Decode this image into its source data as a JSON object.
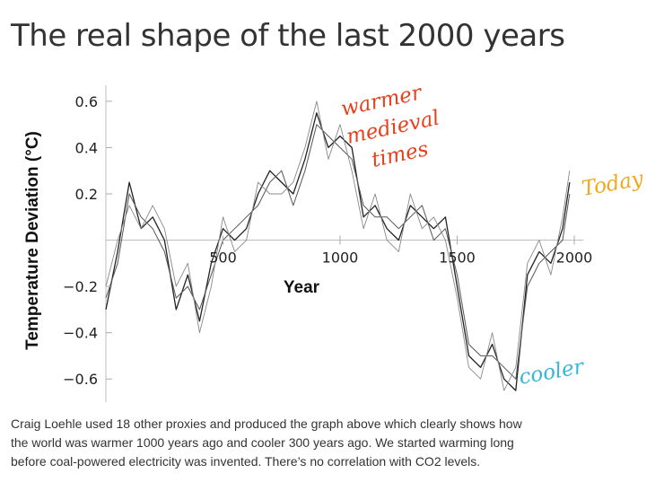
{
  "slide": {
    "title": "The real shape of the last 2000 years",
    "caption_lines": [
      "Craig  Loehle used 18 other proxies and produced the graph above which clearly shows how",
      "the world was warmer 1000 years ago and cooler 300 years ago. We started warming long",
      "before coal-powered electricity was invented. There’s no correlation with CO2 levels."
    ]
  },
  "chart_data": {
    "type": "line",
    "xlabel": "Year",
    "ylabel": "Temperature Deviation (°C)",
    "xlim": [
      0,
      2000
    ],
    "ylim": [
      -0.7,
      0.65
    ],
    "x_ticks": [
      "500",
      "1000",
      "1500",
      "2000"
    ],
    "y_ticks": [
      "0.6",
      "0.4",
      "0.2",
      "−0.2",
      "−0.4",
      "−0.6"
    ],
    "y_tick_values": [
      0.6,
      0.4,
      0.2,
      -0.2,
      -0.4,
      -0.6
    ],
    "x_tick_values": [
      500,
      1000,
      1500,
      2000
    ],
    "x": [
      0,
      50,
      100,
      150,
      200,
      250,
      300,
      350,
      400,
      450,
      500,
      550,
      600,
      650,
      700,
      750,
      800,
      850,
      900,
      950,
      1000,
      1050,
      1100,
      1150,
      1200,
      1250,
      1300,
      1350,
      1400,
      1450,
      1500,
      1550,
      1600,
      1650,
      1700,
      1750,
      1800,
      1850,
      1900,
      1950,
      1980
    ],
    "series": [
      {
        "values": [
          -0.3,
          -0.05,
          0.25,
          0.05,
          0.1,
          0.0,
          -0.3,
          -0.15,
          -0.35,
          -0.1,
          0.05,
          0.0,
          0.05,
          0.2,
          0.3,
          0.25,
          0.2,
          0.35,
          0.55,
          0.4,
          0.45,
          0.4,
          0.1,
          0.15,
          0.05,
          0.0,
          0.15,
          0.1,
          0.05,
          0.1,
          -0.2,
          -0.5,
          -0.55,
          -0.45,
          -0.6,
          -0.65,
          -0.15,
          -0.05,
          -0.1,
          0.05,
          0.25
        ]
      },
      {
        "values": [
          -0.25,
          -0.1,
          0.2,
          0.1,
          0.05,
          -0.05,
          -0.25,
          -0.2,
          -0.3,
          -0.15,
          0.0,
          0.05,
          0.1,
          0.15,
          0.25,
          0.3,
          0.15,
          0.3,
          0.5,
          0.45,
          0.4,
          0.35,
          0.15,
          0.1,
          0.1,
          0.05,
          0.1,
          0.15,
          0.0,
          0.05,
          -0.15,
          -0.45,
          -0.5,
          -0.5,
          -0.55,
          -0.6,
          -0.2,
          -0.1,
          -0.05,
          0.0,
          0.2
        ]
      },
      {
        "values": [
          -0.2,
          0.0,
          0.15,
          0.05,
          0.15,
          0.05,
          -0.2,
          -0.1,
          -0.4,
          -0.2,
          0.1,
          -0.05,
          0.0,
          0.25,
          0.2,
          0.2,
          0.25,
          0.4,
          0.6,
          0.35,
          0.5,
          0.3,
          0.05,
          0.2,
          0.0,
          -0.05,
          0.2,
          0.05,
          0.1,
          0.0,
          -0.25,
          -0.55,
          -0.6,
          -0.4,
          -0.65,
          -0.55,
          -0.1,
          0.0,
          -0.15,
          0.1,
          0.3
        ]
      }
    ],
    "annotations": [
      {
        "lines": [
          "warmer",
          "medieval",
          "times"
        ],
        "color": "#e8401c"
      },
      {
        "lines": [
          "Today"
        ],
        "color": "#f0a81e"
      },
      {
        "lines": [
          "cooler"
        ],
        "color": "#35b6d8"
      }
    ]
  }
}
